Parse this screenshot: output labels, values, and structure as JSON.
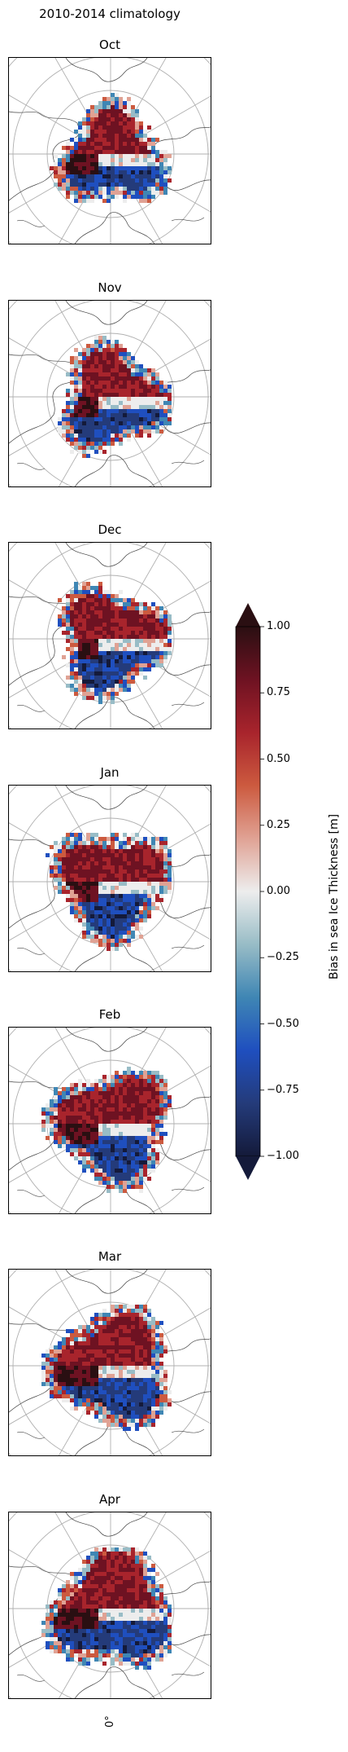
{
  "figure": {
    "title": "2010-2014 climatology",
    "panels": [
      {
        "month": "Oct"
      },
      {
        "month": "Nov"
      },
      {
        "month": "Dec"
      },
      {
        "month": "Jan"
      },
      {
        "month": "Feb"
      },
      {
        "month": "Mar"
      },
      {
        "month": "Apr"
      }
    ],
    "projection": "north polar stereographic",
    "longitude_label": "0°",
    "gridline_color": "#b0b0b0",
    "coastline_color": "#444444"
  },
  "colorbar": {
    "label": "Bias in sea Ice Thickness [m]",
    "range": [
      -1.0,
      1.0
    ],
    "extend": "both",
    "colormap": "balance (diverging)",
    "ticks": [
      "1.00",
      "0.75",
      "0.50",
      "0.25",
      "0.00",
      "−0.25",
      "−0.50",
      "−0.75",
      "−1.00"
    ],
    "colors": [
      "#2a0f12",
      "#6e1222",
      "#a8242c",
      "#cc5a3f",
      "#e0a294",
      "#ededed",
      "#98bcc6",
      "#3f86b4",
      "#1f4fbf",
      "#243b7a",
      "#141a3a"
    ]
  }
}
